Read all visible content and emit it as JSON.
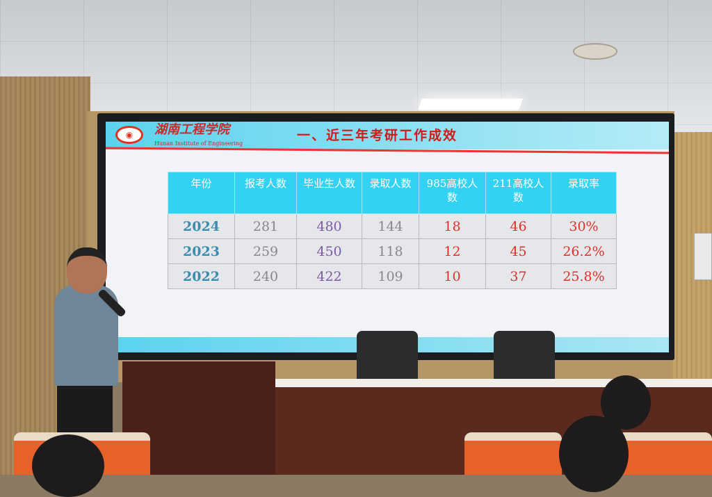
{
  "slide": {
    "school_name": "湖南工程学院",
    "school_name_en": "Hunan Institute of Engineering",
    "title": "一、近三年考研工作成效",
    "table": {
      "headers": [
        "年份",
        "报考人数",
        "毕业生人数",
        "录取人数",
        "985高校人数",
        "211高校人数",
        "录取率"
      ],
      "rows": [
        [
          "2024",
          "281",
          "480",
          "144",
          "18",
          "46",
          "30%"
        ],
        [
          "2023",
          "259",
          "450",
          "118",
          "12",
          "45",
          "26.2%"
        ],
        [
          "2022",
          "240",
          "422",
          "109",
          "10",
          "37",
          "25.8%"
        ]
      ]
    }
  },
  "colors": {
    "header": "#33d2f2",
    "title": "#d11a1a",
    "accent_red": "#e0302a",
    "year": "#3a8db0",
    "graduates": "#7a5aa8"
  }
}
